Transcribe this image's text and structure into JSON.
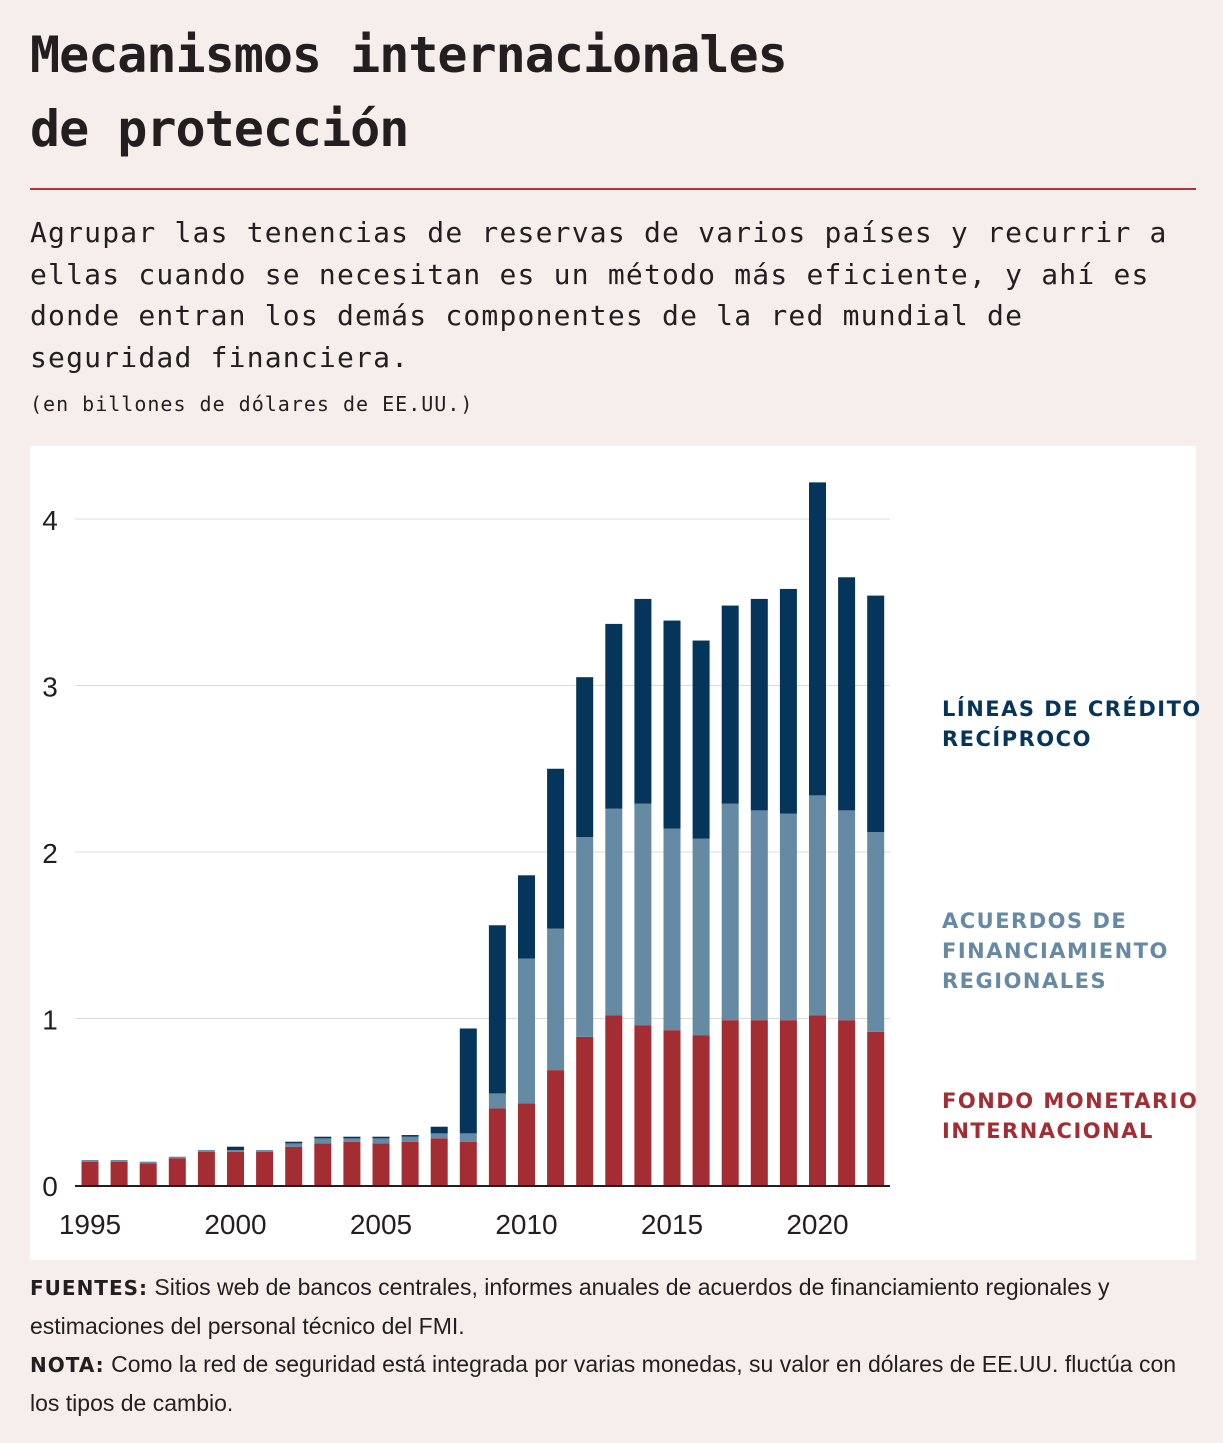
{
  "title_line1": "Mecanismos internacionales",
  "title_line2": "de protección",
  "subtitle": "Agrupar las tenencias de reservas de varios países y recurrir a ellas cuando se necesitan es un método más eficiente, y ahí es donde entran los demás componentes de la red mundial de seguridad financiera.",
  "units": "(en billones de dólares de EE.UU.)",
  "footer": {
    "sources_label": "FUENTES:",
    "sources_text": " Sitios web de bancos centrales, informes anuales de acuerdos de financiamiento regionales y estimaciones del personal técnico del FMI.",
    "note_label": "NOTA:",
    "note_text": " Como la red de seguridad está integrada por varias monedas, su valor en dólares de EE.UU. fluctúa con los tipos de cambio."
  },
  "colors": {
    "imf": "#a32d33",
    "rfa": "#668aa4",
    "bsl": "#05355a",
    "grid": "#dcdcdc",
    "axis": "#231f20"
  },
  "chart_data": {
    "type": "bar",
    "stacked": true,
    "categories": [
      1995,
      1996,
      1997,
      1998,
      1999,
      2000,
      2001,
      2002,
      2003,
      2004,
      2005,
      2006,
      2007,
      2008,
      2009,
      2010,
      2011,
      2012,
      2013,
      2014,
      2015,
      2016,
      2017,
      2018,
      2019,
      2020,
      2021,
      2022
    ],
    "series": [
      {
        "name": "FONDO MONETARIO INTERNACIONAL",
        "color": "#a32d33",
        "values": [
          0.14,
          0.14,
          0.13,
          0.16,
          0.2,
          0.2,
          0.2,
          0.23,
          0.25,
          0.26,
          0.25,
          0.26,
          0.28,
          0.26,
          0.46,
          0.49,
          0.69,
          0.89,
          1.02,
          0.96,
          0.93,
          0.9,
          0.99,
          0.99,
          0.99,
          1.02,
          0.99,
          0.92
        ]
      },
      {
        "name": "ACUERDOS DE FINANCIAMIENTO REGIONALES",
        "color": "#668aa4",
        "values": [
          0.01,
          0.01,
          0.01,
          0.01,
          0.01,
          0.01,
          0.01,
          0.02,
          0.03,
          0.02,
          0.03,
          0.03,
          0.03,
          0.05,
          0.09,
          0.87,
          0.85,
          1.2,
          1.24,
          1.33,
          1.21,
          1.18,
          1.3,
          1.26,
          1.24,
          1.32,
          1.26,
          1.2
        ]
      },
      {
        "name": "LÍNEAS DE CRÉDITO RECÍPROCO",
        "color": "#05355a",
        "values": [
          0.0,
          0.0,
          0.0,
          0.0,
          0.0,
          0.02,
          0.0,
          0.01,
          0.01,
          0.01,
          0.01,
          0.01,
          0.04,
          0.63,
          1.01,
          0.5,
          0.96,
          0.96,
          1.11,
          1.23,
          1.25,
          1.19,
          1.19,
          1.27,
          1.35,
          1.88,
          1.4,
          1.42
        ]
      }
    ],
    "legend": [
      {
        "label_line1": "LÍNEAS DE CRÉDITO",
        "label_line2": "RECÍPROCO"
      },
      {
        "label_line1": "ACUERDOS DE",
        "label_line2": "FINANCIAMIENTO",
        "label_line3": "REGIONALES"
      },
      {
        "label_line1": "FONDO MONETARIO",
        "label_line2": "INTERNACIONAL"
      }
    ],
    "legend_position": "right",
    "ylim": [
      0,
      4.25
    ],
    "yticks": [
      "0",
      "1",
      "2",
      "3",
      "4"
    ],
    "xticks": [
      "1995",
      "2000",
      "2005",
      "2010",
      "2015",
      "2020"
    ],
    "grid": true
  }
}
